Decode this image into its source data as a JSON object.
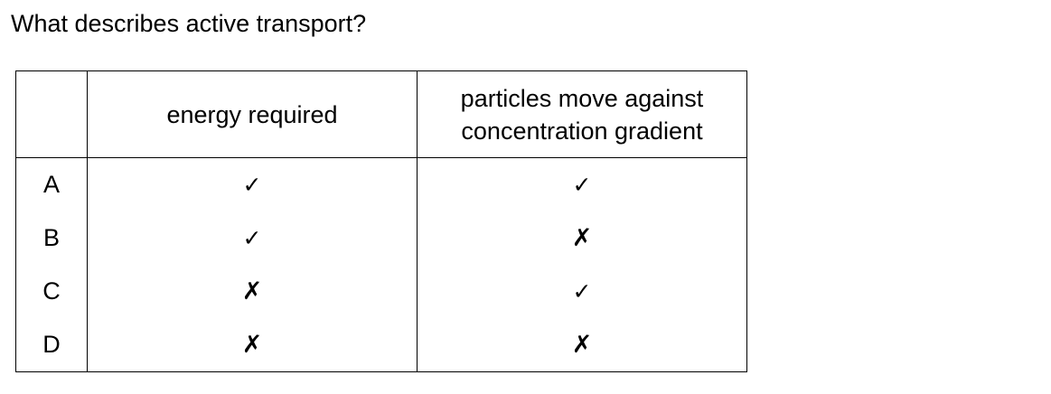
{
  "question": "What describes active transport?",
  "table": {
    "headers": [
      "",
      "energy required",
      "particles move against concentration gradient"
    ],
    "rows": [
      {
        "key": "A",
        "energy_required": "✓",
        "against_gradient": "✓"
      },
      {
        "key": "B",
        "energy_required": "✓",
        "against_gradient": "✗"
      },
      {
        "key": "C",
        "energy_required": "✗",
        "against_gradient": "✓"
      },
      {
        "key": "D",
        "energy_required": "✗",
        "against_gradient": "✗"
      }
    ]
  }
}
